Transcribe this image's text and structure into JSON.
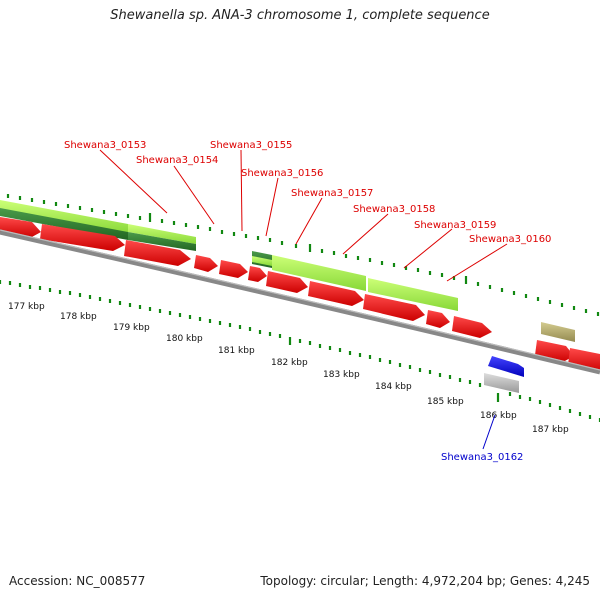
{
  "title": "Shewanella sp. ANA-3 chromosome 1, complete sequence",
  "footer": {
    "accession": "Accession: NC_008577",
    "summary": "Topology: circular; Length: 4,972,204 bp; Genes: 4,245"
  },
  "colors": {
    "cds_forward": "#ee1111",
    "cds_reverse_light": "#aaee55",
    "cds_reverse_dark": "#338833",
    "backbone": "#888888",
    "ticks": "#118811",
    "blue_feature": "#1111ee",
    "grey_feature": "#bbbbbb",
    "khaki_feature": "#bbb070",
    "label_red": "#dd0000",
    "label_blue": "#0000cc"
  },
  "gene_labels": [
    {
      "text": "Shewana3_0153",
      "color": "red"
    },
    {
      "text": "Shewana3_0154",
      "color": "red"
    },
    {
      "text": "Shewana3_0155",
      "color": "red"
    },
    {
      "text": "Shewana3_0156",
      "color": "red"
    },
    {
      "text": "Shewana3_0157",
      "color": "red"
    },
    {
      "text": "Shewana3_0158",
      "color": "red"
    },
    {
      "text": "Shewana3_0159",
      "color": "red"
    },
    {
      "text": "Shewana3_0160",
      "color": "red"
    },
    {
      "text": "Shewana3_0162",
      "color": "blue"
    }
  ],
  "kbp_labels": [
    "177 kbp",
    "178 kbp",
    "179 kbp",
    "180 kbp",
    "181 kbp",
    "182 kbp",
    "183 kbp",
    "184 kbp",
    "185 kbp",
    "186 kbp",
    "187 kbp"
  ]
}
